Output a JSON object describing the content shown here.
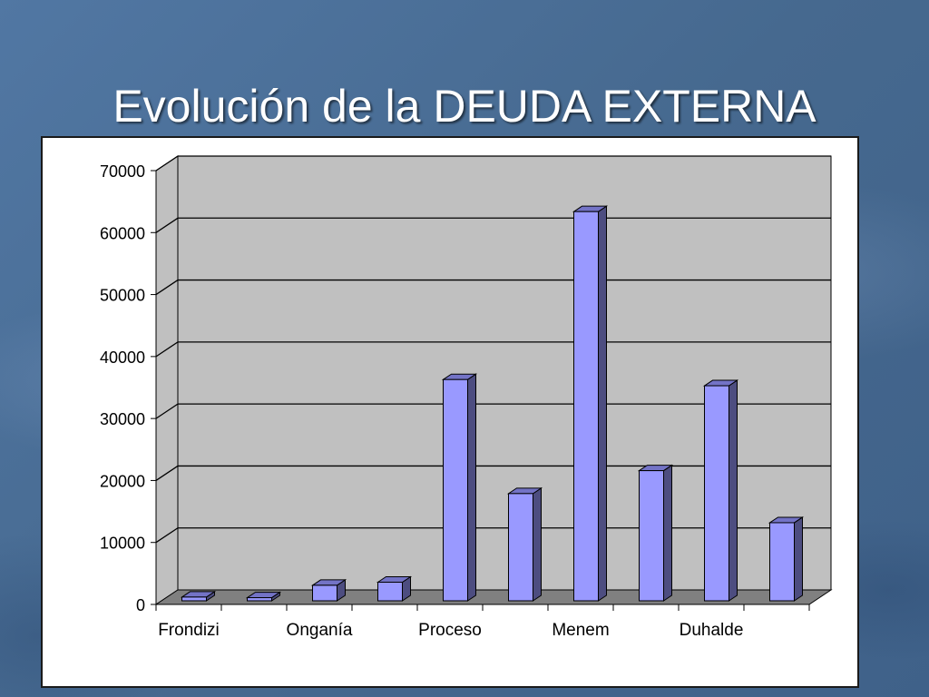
{
  "slide": {
    "title": "Evolución de la DEUDA EXTERNA"
  },
  "colors": {
    "bar_front": "#9999ff",
    "bar_side": "#4d4d80",
    "bar_top": "#7373c6",
    "plot_back": "#c0c0c0",
    "plot_floor": "#808080"
  },
  "chart_data": {
    "type": "bar",
    "title": "",
    "xlabel": "",
    "ylabel": "",
    "ylim": [
      0,
      70000
    ],
    "yticks": [
      0,
      10000,
      20000,
      30000,
      40000,
      50000,
      60000,
      70000
    ],
    "grid": true,
    "legend": "none",
    "three_d": true,
    "category_labels": [
      "Frondizi",
      "Onganía",
      "Proceso",
      "Menem",
      "Duhalde"
    ],
    "values": [
      600,
      500,
      2500,
      3000,
      35700,
      17300,
      62800,
      21000,
      34700,
      12600
    ]
  }
}
